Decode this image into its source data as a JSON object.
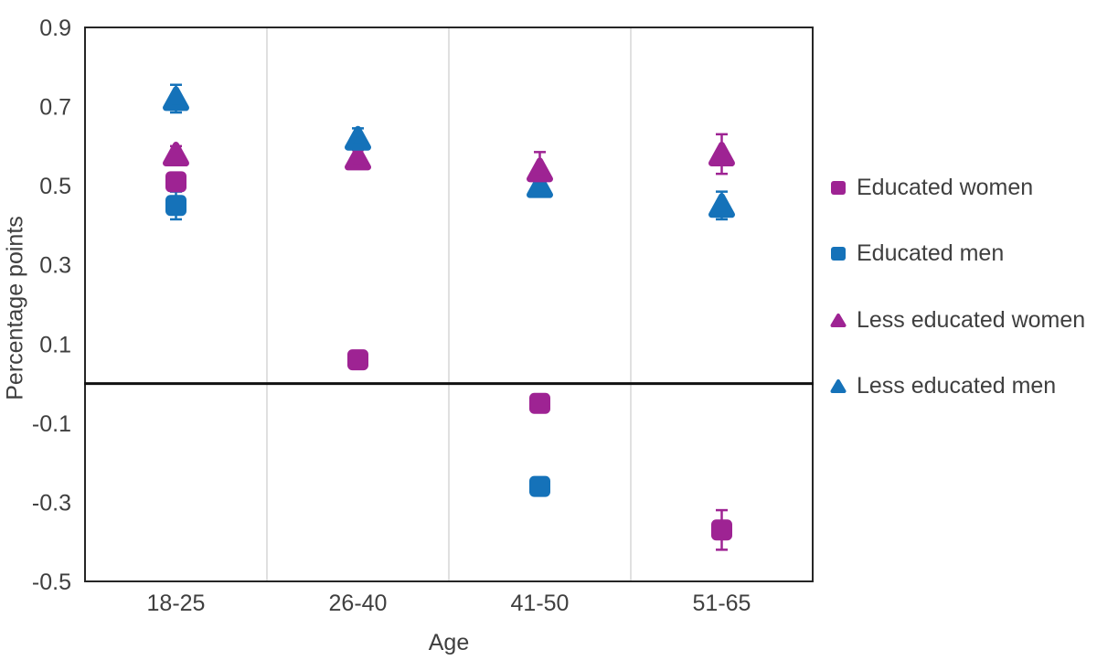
{
  "chart_data": {
    "type": "scatter",
    "title": "",
    "xlabel": "Age",
    "ylabel": "Percentage points",
    "categories": [
      "18-25",
      "26-40",
      "41-50",
      "51-65"
    ],
    "ylim": [
      -0.5,
      0.9
    ],
    "yticks": [
      0.9,
      0.7,
      0.5,
      0.3,
      0.1,
      -0.1,
      -0.3,
      -0.5
    ],
    "ytick_labels": [
      "0.9",
      "0.7",
      "0.5",
      "0.3",
      "0.1",
      "-0.1",
      "-0.3",
      "-0.5"
    ],
    "grid": "vertical category separators only, light gray; bold horizontal zero line",
    "legend_position": "right",
    "series": [
      {
        "name": "Educated women",
        "marker": "square",
        "color": "#9E2393",
        "values": [
          0.51,
          0.06,
          -0.05,
          -0.37
        ],
        "errors": [
          0.02,
          0.02,
          0.02,
          0.05
        ]
      },
      {
        "name": "Educated men",
        "marker": "square",
        "color": "#1572B9",
        "values": [
          0.45,
          null,
          -0.26,
          null
        ],
        "errors": [
          0.035,
          null,
          0.02,
          null
        ]
      },
      {
        "name": "Less educated women",
        "marker": "triangle",
        "color": "#9E2393",
        "values": [
          0.58,
          0.57,
          0.54,
          0.58
        ],
        "errors": [
          0.02,
          0.02,
          0.045,
          0.05
        ]
      },
      {
        "name": "Less educated men",
        "marker": "triangle",
        "color": "#1572B9",
        "values": [
          0.72,
          0.62,
          0.5,
          0.45
        ],
        "errors": [
          0.035,
          0.025,
          0.02,
          0.035
        ]
      }
    ]
  },
  "colors": {
    "purple": "#9E2393",
    "blue": "#1572B9",
    "text": "#3F3F3F",
    "plot_border": "#262626",
    "gridline": "#D6D6D6",
    "zero_line": "#111111",
    "background": "#FFFFFF"
  }
}
